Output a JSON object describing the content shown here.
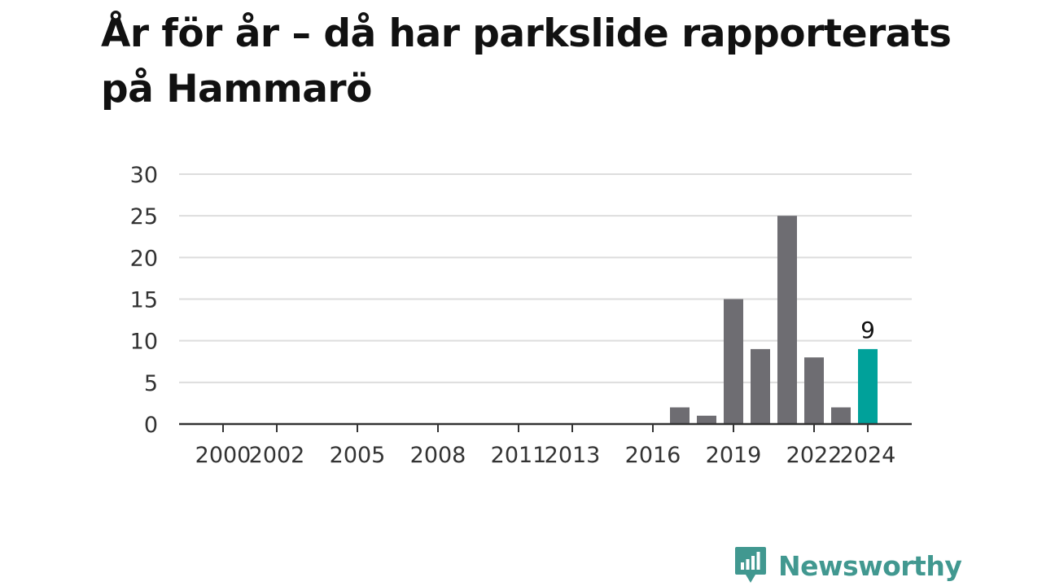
{
  "title": "År för år – då har parkslide rapporterats på Hammarö",
  "brand": {
    "name": "Newsworthy",
    "color": "#419890"
  },
  "colors": {
    "bar": "#6e6d72",
    "highlight": "#00a19a",
    "grid": "#dddddd",
    "axis": "#333333"
  },
  "chart_data": {
    "type": "bar",
    "title": "År för år – då har parkslide rapporterats på Hammarö",
    "xlabel": "",
    "ylabel": "",
    "categories": [
      2000,
      2001,
      2002,
      2003,
      2004,
      2005,
      2006,
      2007,
      2008,
      2009,
      2010,
      2011,
      2012,
      2013,
      2014,
      2015,
      2016,
      2017,
      2018,
      2019,
      2020,
      2021,
      2022,
      2023,
      2024
    ],
    "values": [
      0,
      0,
      0,
      0,
      0,
      0,
      0,
      0,
      0,
      0,
      0,
      0,
      0,
      0,
      0,
      0,
      0,
      2,
      1,
      15,
      9,
      25,
      8,
      2,
      9
    ],
    "highlight": 2024,
    "highlight_label": "9",
    "x_tick_labels": [
      2000,
      2002,
      2005,
      2008,
      2011,
      2013,
      2016,
      2019,
      2022,
      2024
    ],
    "ylim": [
      0,
      30
    ],
    "y_ticks": [
      0,
      5,
      10,
      15,
      20,
      25,
      30
    ],
    "grid": true,
    "legend": "none"
  }
}
